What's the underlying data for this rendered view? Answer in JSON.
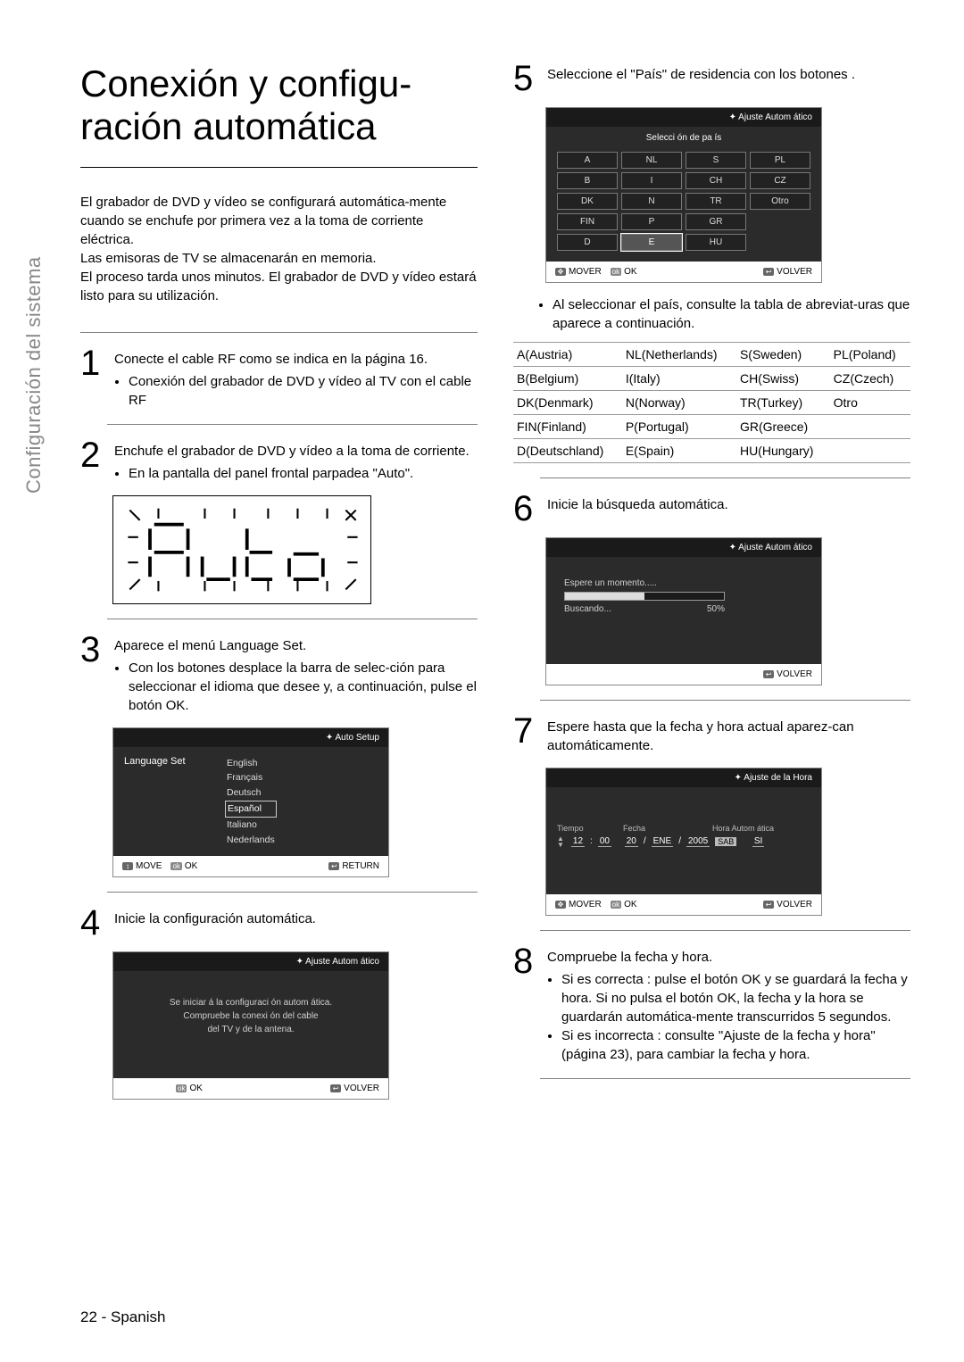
{
  "sidebar_label": "Configuración del sistema",
  "title": "Conexión y configu-ración automática",
  "intro_p1": "El grabador de DVD y vídeo se configurará automática-mente cuando se enchufe por primera vez a la toma de corriente eléctrica.",
  "intro_p2": "Las emisoras de TV se almacenarán en memoria.",
  "intro_p3": "El proceso tarda unos minutos. El grabador de DVD y vídeo estará listo para su utilización.",
  "step1": "Conecte el cable RF como se indica en la página 16.",
  "step1_b1": "Conexión del grabador de DVD y vídeo al TV con el cable RF",
  "step2": "Enchufe el grabador de DVD y vídeo a la toma de corriente.",
  "step2_b1": "En la pantalla del panel frontal parpadea \"Auto\".",
  "step3": "Aparece el menú Language Set.",
  "step3_b1": "Con los botones            desplace la barra de selec-ción para seleccionar el idioma que desee y, a continuación, pulse el botón OK.",
  "step4": "Inicie la configuración automática.",
  "step5": "Seleccione el \"País\" de residencia con los botones                  .",
  "step5_b1": "Al seleccionar el país, consulte la tabla de abreviat-uras que aparece a continuación.",
  "step6": "Inicie la búsqueda automática.",
  "step7": "Espere hasta que la fecha y hora actual aparez-can automáticamente.",
  "step8": "Compruebe la fecha y hora.",
  "step8_b1": "Si es correcta : pulse el botón OK y se guardará la fecha y hora. Si no pulsa el botón OK, la fecha y la hora se guardarán automática-mente transcurridos 5 segundos.",
  "step8_b2": "Si es incorrecta : consulte \"Ajuste de la fecha y hora\" (página 23), para cambiar la fecha y hora.",
  "dlg3": {
    "header": "Auto Setup",
    "label": "Language Set",
    "langs": [
      "English",
      "Français",
      "Deutsch",
      "Español",
      "Italiano",
      "Nederlands"
    ],
    "selected_index": 3,
    "footer_move": "MOVE",
    "footer_ok": "OK",
    "footer_return": "RETURN"
  },
  "dlg4": {
    "header": "Ajuste Autom ático",
    "line1": "Se iniciar á la configuraci ón autom ática.",
    "line2": "Compruebe la conexi ón del cable",
    "line3": "del TV y de la antena.",
    "footer_ok": "OK",
    "footer_volver": "VOLVER"
  },
  "dlg5": {
    "header": "Ajuste Autom ático",
    "subtitle": "Selecci ón de pa ís",
    "grid": [
      [
        "A",
        "NL",
        "S",
        "PL"
      ],
      [
        "B",
        "I",
        "CH",
        "CZ"
      ],
      [
        "DK",
        "N",
        "TR",
        "Otro"
      ],
      [
        "FIN",
        "P",
        "GR",
        ""
      ],
      [
        "D",
        "E",
        "HU",
        ""
      ]
    ],
    "selected_row": 4,
    "selected_col": 1,
    "footer_mover": "MOVER",
    "footer_ok": "OK",
    "footer_volver": "VOLVER"
  },
  "abbr": [
    [
      "A(Austria)",
      "NL(Netherlands)",
      "S(Sweden)",
      "PL(Poland)"
    ],
    [
      "B(Belgium)",
      "I(Italy)",
      "CH(Swiss)",
      "CZ(Czech)"
    ],
    [
      "DK(Denmark)",
      "N(Norway)",
      "TR(Turkey)",
      "Otro"
    ],
    [
      "FIN(Finland)",
      "P(Portugal)",
      "GR(Greece)",
      ""
    ],
    [
      "D(Deutschland)",
      "E(Spain)",
      "HU(Hungary)",
      ""
    ]
  ],
  "dlg6": {
    "header": "Ajuste Autom ático",
    "line1": "Espere un momento.....",
    "line2": "Buscando...",
    "percent_label": "50%",
    "percent": 50,
    "footer_volver": "VOLVER"
  },
  "dlg7": {
    "header": "Ajuste de la Hora",
    "col_tiempo": "Tiempo",
    "col_fecha": "Fecha",
    "col_auto": "Hora Autom ática",
    "v_hh": "12",
    "v_mm": "00",
    "v_dd": "20",
    "v_mon": "ENE",
    "v_yyyy": "2005",
    "v_dow": "SAB",
    "v_auto": "SI",
    "footer_mover": "MOVER",
    "footer_ok": "OK",
    "footer_volver": "VOLVER"
  },
  "page_num": "22 - Spanish"
}
